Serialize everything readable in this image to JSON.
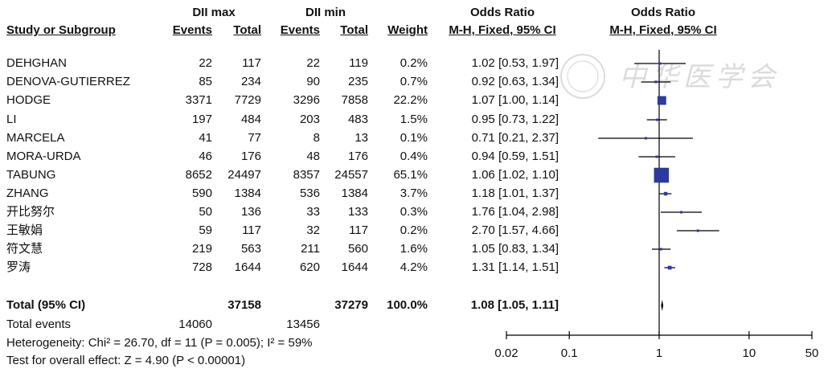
{
  "header": {
    "group_max": "DII max",
    "group_min": "DII min",
    "or_col_title": "Odds Ratio",
    "or_col_method": "M-H, Fixed, 95% CI",
    "plot_title": "Odds Ratio",
    "plot_method": "M-H, Fixed, 95% CI",
    "study_col": "Study or Subgroup",
    "events1": "Events",
    "total1": "Total",
    "events2": "Events",
    "total2": "Total",
    "weight": "Weight"
  },
  "studies": [
    {
      "name": "DEHGHAN",
      "e1": "22",
      "t1": "117",
      "e2": "22",
      "t2": "119",
      "w": "0.2%",
      "ci": "1.02 [0.53, 1.97]"
    },
    {
      "name": "DENOVA-GUTIERREZ",
      "e1": "85",
      "t1": "234",
      "e2": "90",
      "t2": "235",
      "w": "0.7%",
      "ci": "0.92 [0.63, 1.34]"
    },
    {
      "name": "HODGE",
      "e1": "3371",
      "t1": "7729",
      "e2": "3296",
      "t2": "7858",
      "w": "22.2%",
      "ci": "1.07 [1.00, 1.14]"
    },
    {
      "name": "LI",
      "e1": "197",
      "t1": "484",
      "e2": "203",
      "t2": "483",
      "w": "1.5%",
      "ci": "0.95 [0.73, 1.22]"
    },
    {
      "name": "MARCELA",
      "e1": "41",
      "t1": "77",
      "e2": "8",
      "t2": "13",
      "w": "0.1%",
      "ci": "0.71 [0.21, 2.37]"
    },
    {
      "name": "MORA-URDA",
      "e1": "46",
      "t1": "176",
      "e2": "48",
      "t2": "176",
      "w": "0.4%",
      "ci": "0.94 [0.59, 1.51]"
    },
    {
      "name": "TABUNG",
      "e1": "8652",
      "t1": "24497",
      "e2": "8357",
      "t2": "24557",
      "w": "65.1%",
      "ci": "1.06 [1.02, 1.10]"
    },
    {
      "name": "ZHANG",
      "e1": "590",
      "t1": "1384",
      "e2": "536",
      "t2": "1384",
      "w": "3.7%",
      "ci": "1.18 [1.01, 1.37]"
    },
    {
      "name": "开比努尔",
      "e1": "50",
      "t1": "136",
      "e2": "33",
      "t2": "133",
      "w": "0.3%",
      "ci": "1.76 [1.04, 2.98]"
    },
    {
      "name": "王敏娟",
      "e1": "59",
      "t1": "117",
      "e2": "32",
      "t2": "117",
      "w": "0.2%",
      "ci": "2.70 [1.57, 4.66]"
    },
    {
      "name": "符文慧",
      "e1": "219",
      "t1": "563",
      "e2": "211",
      "t2": "560",
      "w": "1.6%",
      "ci": "1.05 [0.83, 1.34]"
    },
    {
      "name": "罗涛",
      "e1": "728",
      "t1": "1644",
      "e2": "620",
      "t2": "1644",
      "w": "4.2%",
      "ci": "1.31 [1.14, 1.51]"
    }
  ],
  "total": {
    "label": "Total (95% CI)",
    "t1": "37158",
    "t2": "37279",
    "w": "100.0%",
    "ci": "1.08 [1.05, 1.11]"
  },
  "total_events": {
    "label": "Total events",
    "e1": "14060",
    "e2": "13456"
  },
  "heterogeneity": "Heterogeneity: Chi² = 26.70, df = 11 (P = 0.005); I² = 59%",
  "overall_effect": "Test for overall effect: Z = 4.90 (P < 0.00001)",
  "watermark_text": "中华医学会",
  "colors": {
    "marker": "#2b3a9c",
    "line": "#000000",
    "text": "#111111"
  },
  "chart_data": {
    "type": "forest",
    "scale": "log",
    "xlim": [
      0.02,
      50
    ],
    "xticks": [
      0.02,
      0.1,
      1,
      10,
      50
    ],
    "xtick_labels": [
      "0.02",
      "0.1",
      "1",
      "10",
      "50"
    ],
    "reference_line": 1,
    "points": [
      {
        "study": "DEHGHAN",
        "or": 1.02,
        "lo": 0.53,
        "hi": 1.97,
        "weight": 0.2
      },
      {
        "study": "DENOVA-GUTIERREZ",
        "or": 0.92,
        "lo": 0.63,
        "hi": 1.34,
        "weight": 0.7
      },
      {
        "study": "HODGE",
        "or": 1.07,
        "lo": 1.0,
        "hi": 1.14,
        "weight": 22.2
      },
      {
        "study": "LI",
        "or": 0.95,
        "lo": 0.73,
        "hi": 1.22,
        "weight": 1.5
      },
      {
        "study": "MARCELA",
        "or": 0.71,
        "lo": 0.21,
        "hi": 2.37,
        "weight": 0.1
      },
      {
        "study": "MORA-URDA",
        "or": 0.94,
        "lo": 0.59,
        "hi": 1.51,
        "weight": 0.4
      },
      {
        "study": "TABUNG",
        "or": 1.06,
        "lo": 1.02,
        "hi": 1.1,
        "weight": 65.1
      },
      {
        "study": "ZHANG",
        "or": 1.18,
        "lo": 1.01,
        "hi": 1.37,
        "weight": 3.7
      },
      {
        "study": "开比努尔",
        "or": 1.76,
        "lo": 1.04,
        "hi": 2.98,
        "weight": 0.3
      },
      {
        "study": "王敏娟",
        "or": 2.7,
        "lo": 1.57,
        "hi": 4.66,
        "weight": 0.2
      },
      {
        "study": "符文慧",
        "or": 1.05,
        "lo": 0.83,
        "hi": 1.34,
        "weight": 1.6
      },
      {
        "study": "罗涛",
        "or": 1.31,
        "lo": 1.14,
        "hi": 1.51,
        "weight": 4.2
      }
    ],
    "summary": {
      "or": 1.08,
      "lo": 1.05,
      "hi": 1.11
    }
  }
}
